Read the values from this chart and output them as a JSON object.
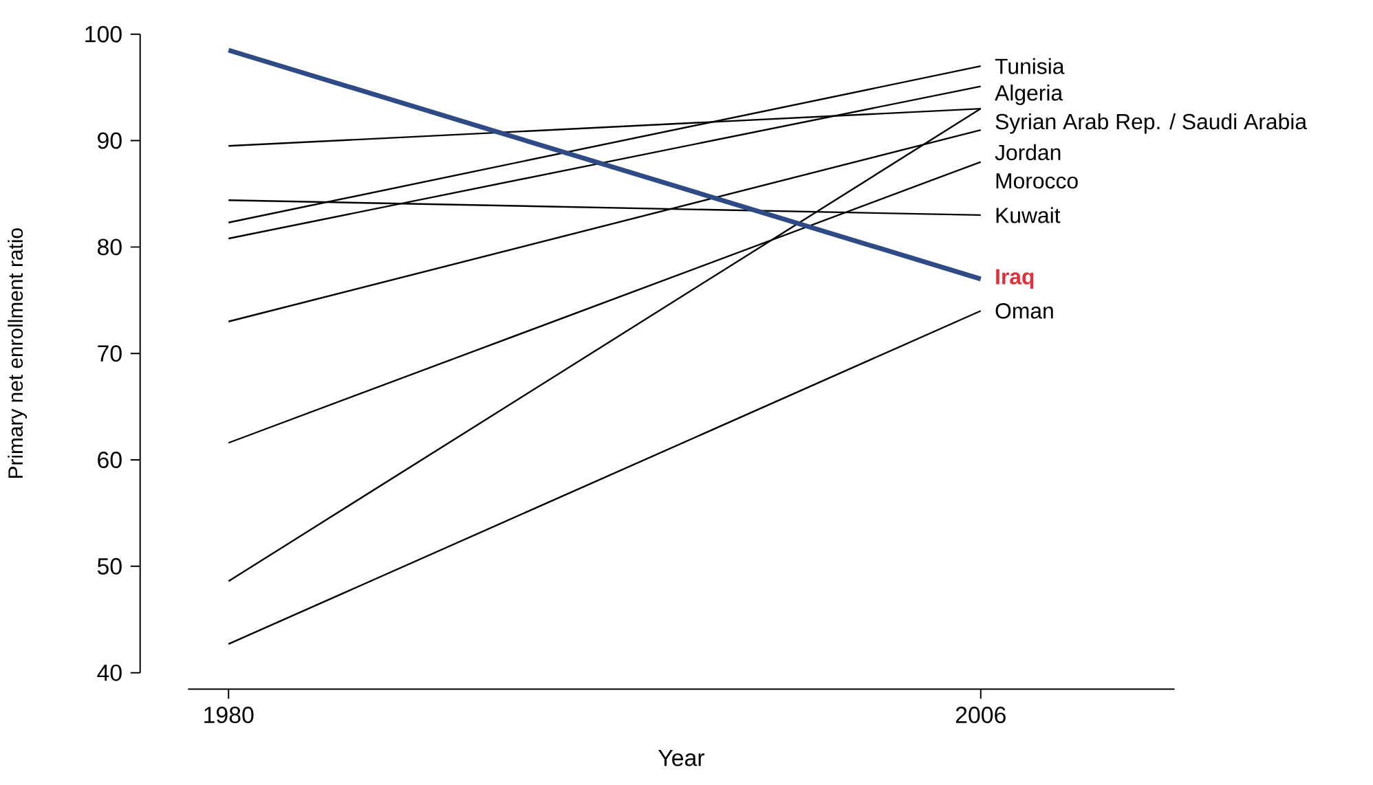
{
  "chart_data": {
    "type": "line",
    "xlabel": "Year",
    "ylabel": "Primary net enrollment ratio",
    "x": [
      1980,
      2006
    ],
    "xlim": [
      1978.6,
      2012.7
    ],
    "xticks": [
      1980,
      2006
    ],
    "ylim": [
      40,
      100
    ],
    "yticks": [
      40,
      50,
      60,
      70,
      80,
      90,
      100
    ],
    "legend": false,
    "marker": "none",
    "line_style": "solid",
    "series": [
      {
        "name": "Tunisia",
        "color": "#000000",
        "values": [
          82.3,
          97.0
        ]
      },
      {
        "name": "Algeria",
        "color": "#000000",
        "values": [
          80.8,
          95.1
        ]
      },
      {
        "color": "#000000",
        "values": [
          89.5,
          93.0
        ]
      },
      {
        "color": "#000000",
        "values": [
          48.6,
          93.0
        ]
      },
      {
        "name": "Jordan",
        "color": "#000000",
        "values": [
          73.0,
          91.0
        ]
      },
      {
        "name": "Morocco",
        "color": "#000000",
        "values": [
          61.6,
          88.0
        ]
      },
      {
        "name": "Kuwait",
        "color": "#000000",
        "values": [
          84.4,
          83.0
        ]
      },
      {
        "name": "Iraq",
        "color": "#2f4b85",
        "values": [
          98.5,
          77.0
        ]
      },
      {
        "name": "Oman",
        "color": "#000000",
        "values": [
          42.7,
          74.0
        ]
      }
    ],
    "annotations": [
      {
        "text": "Syrian Arab Rep. / Saudi Arabia",
        "x": 2006,
        "y": 93
      }
    ]
  }
}
